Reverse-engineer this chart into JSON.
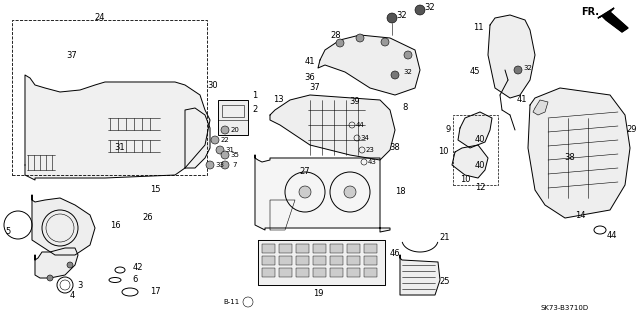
{
  "background_color": "#ffffff",
  "diagram_code": "SK73-B3710D",
  "fig_width": 6.4,
  "fig_height": 3.19,
  "dpi": 100,
  "lc": "#000000",
  "lw": 0.7,
  "lw_thick": 1.0,
  "lw_thin": 0.4,
  "fs": 6.0,
  "fs_small": 5.0
}
